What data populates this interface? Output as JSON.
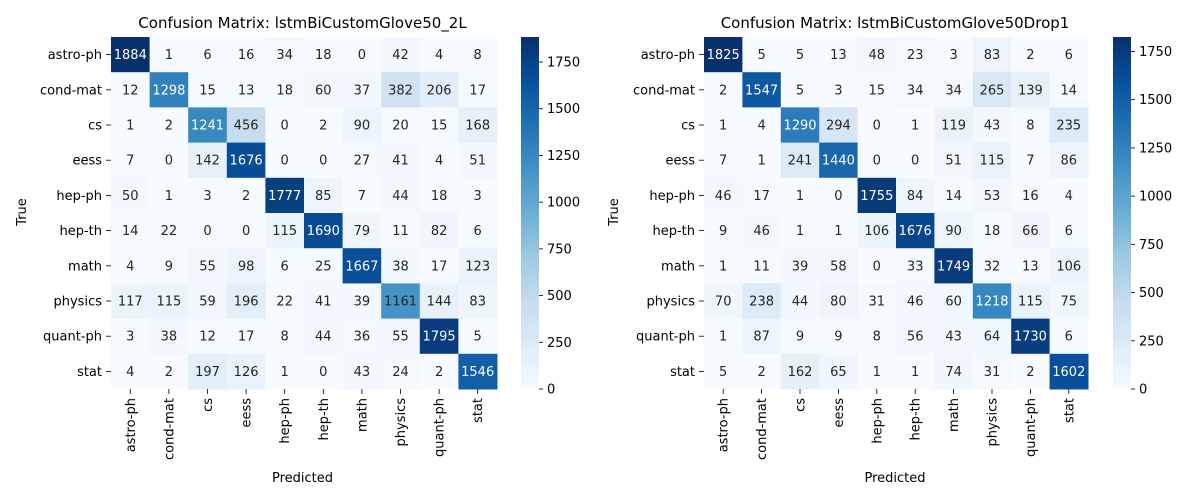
{
  "chart_data": [
    {
      "type": "heatmap",
      "title": "Confusion Matrix: lstmBiCustomGlove50_2L",
      "xlabel": "Predicted",
      "ylabel": "True",
      "labels": [
        "astro-ph",
        "cond-mat",
        "cs",
        "eess",
        "hep-ph",
        "hep-th",
        "math",
        "physics",
        "quant-ph",
        "stat"
      ],
      "matrix": [
        [
          1884,
          1,
          6,
          16,
          34,
          18,
          0,
          42,
          4,
          8
        ],
        [
          12,
          1298,
          15,
          13,
          18,
          60,
          37,
          382,
          206,
          17
        ],
        [
          1,
          2,
          1241,
          456,
          0,
          2,
          90,
          20,
          15,
          168
        ],
        [
          7,
          0,
          142,
          1676,
          0,
          0,
          27,
          41,
          4,
          51
        ],
        [
          50,
          1,
          3,
          2,
          1777,
          85,
          7,
          44,
          18,
          3
        ],
        [
          14,
          22,
          0,
          0,
          115,
          1690,
          79,
          11,
          82,
          6
        ],
        [
          4,
          9,
          55,
          98,
          6,
          25,
          1667,
          38,
          17,
          123
        ],
        [
          117,
          115,
          59,
          196,
          22,
          41,
          39,
          1161,
          144,
          83
        ],
        [
          3,
          38,
          12,
          17,
          8,
          44,
          36,
          55,
          1795,
          5
        ],
        [
          4,
          2,
          197,
          126,
          1,
          0,
          43,
          24,
          2,
          1546
        ]
      ],
      "colorbar_ticks": [
        "0",
        "250",
        "500",
        "750",
        "1000",
        "1250",
        "1500",
        "1750"
      ],
      "colorbar_tick_values": [
        0,
        250,
        500,
        750,
        1000,
        1250,
        1500,
        1750
      ],
      "vmin": 0,
      "vmax": 1884,
      "colormap": "Blues"
    },
    {
      "type": "heatmap",
      "title": "Confusion Matrix: lstmBiCustomGlove50Drop1",
      "xlabel": "Predicted",
      "ylabel": "True",
      "labels": [
        "astro-ph",
        "cond-mat",
        "cs",
        "eess",
        "hep-ph",
        "hep-th",
        "math",
        "physics",
        "quant-ph",
        "stat"
      ],
      "matrix": [
        [
          1825,
          5,
          5,
          13,
          48,
          23,
          3,
          83,
          2,
          6
        ],
        [
          2,
          1547,
          5,
          3,
          15,
          34,
          34,
          265,
          139,
          14
        ],
        [
          1,
          4,
          1290,
          294,
          0,
          1,
          119,
          43,
          8,
          235
        ],
        [
          7,
          1,
          241,
          1440,
          0,
          0,
          51,
          115,
          7,
          86
        ],
        [
          46,
          17,
          1,
          0,
          1755,
          84,
          14,
          53,
          16,
          4
        ],
        [
          9,
          46,
          1,
          1,
          106,
          1676,
          90,
          18,
          66,
          6
        ],
        [
          1,
          11,
          39,
          58,
          0,
          33,
          1749,
          32,
          13,
          106
        ],
        [
          70,
          238,
          44,
          80,
          31,
          46,
          60,
          1218,
          115,
          75
        ],
        [
          1,
          87,
          9,
          9,
          8,
          56,
          43,
          64,
          1730,
          6
        ],
        [
          5,
          2,
          162,
          65,
          1,
          1,
          74,
          31,
          2,
          1602
        ]
      ],
      "colorbar_ticks": [
        "0",
        "250",
        "500",
        "750",
        "1000",
        "1250",
        "1500",
        "1750"
      ],
      "colorbar_tick_values": [
        0,
        250,
        500,
        750,
        1000,
        1250,
        1500,
        1750
      ],
      "vmin": 0,
      "vmax": 1825,
      "colormap": "Blues"
    }
  ]
}
